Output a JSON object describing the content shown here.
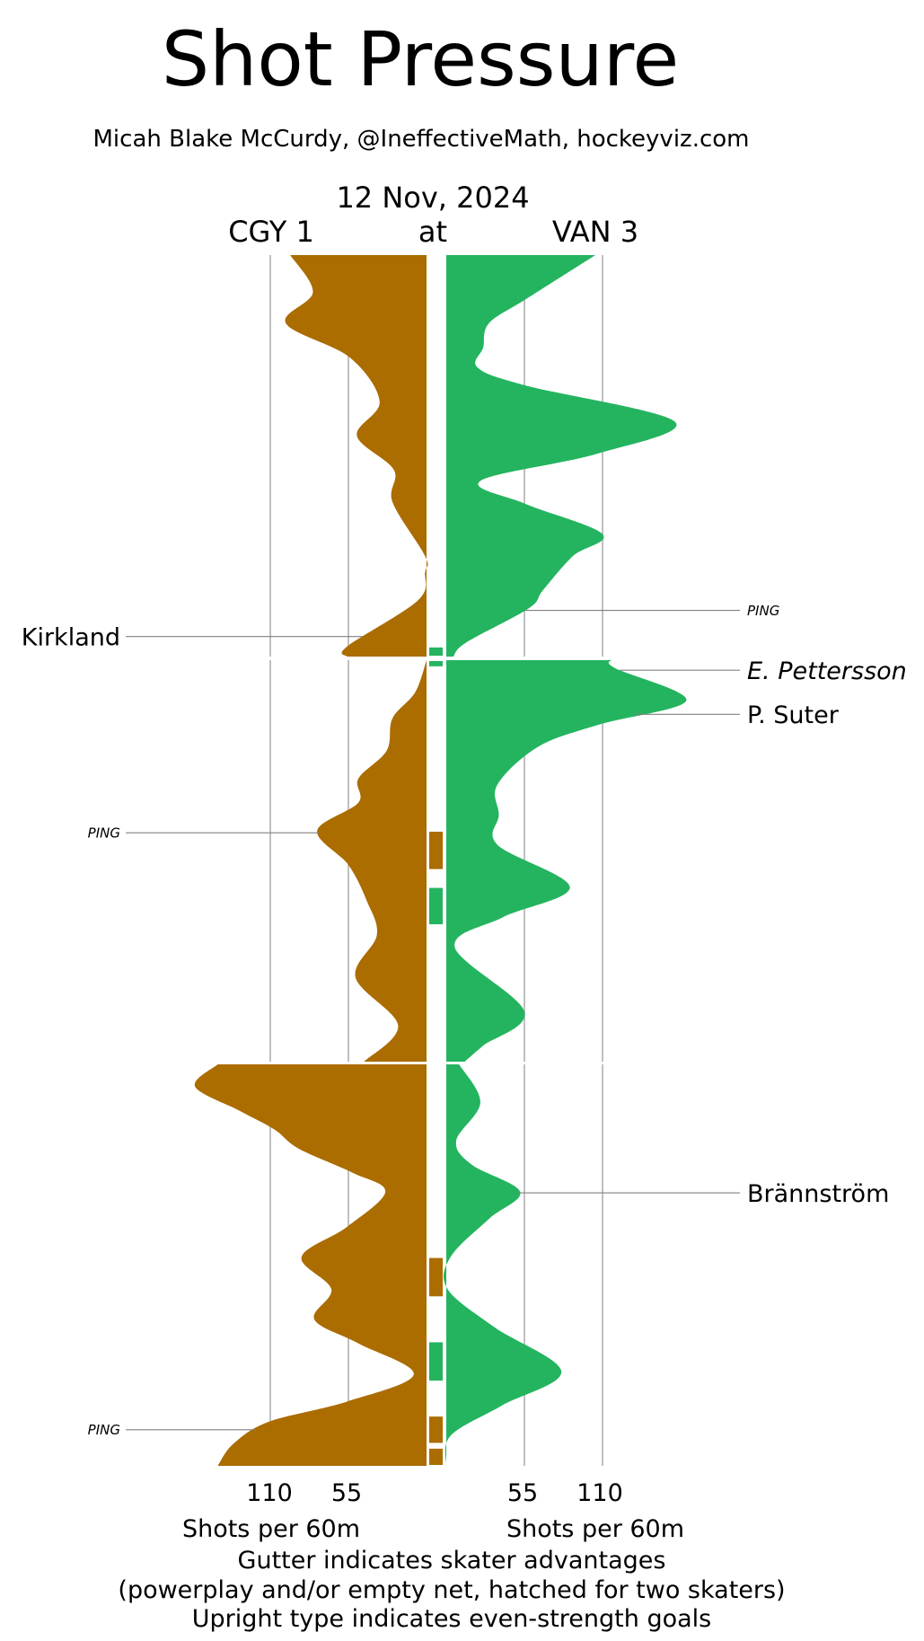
{
  "title": "Shot Pressure",
  "subtitle": "Micah Blake McCurdy, @IneffectiveMath, hockeyviz.com",
  "date": "12 Nov, 2024",
  "teams": {
    "away": "CGY 1",
    "separator": "at",
    "home": "VAN 3"
  },
  "colors": {
    "away": "#AB6C00",
    "home": "#24B45F"
  },
  "chart_data": {
    "type": "area",
    "title": "Shot Pressure",
    "xlabel_left": "Shots per 60m",
    "xlabel_right": "Shots per 60m",
    "ticks_left": [
      "110",
      "55"
    ],
    "tick_values_left": [
      110,
      55
    ],
    "ticks_right": [
      "55",
      "110"
    ],
    "tick_values_right": [
      55,
      110
    ],
    "period_length_min": 20,
    "series": [
      {
        "name": "CGY",
        "side": "left",
        "periods": [
          [
            [
              0,
              96
            ],
            [
              1.85,
              80
            ],
            [
              3.4,
              99
            ],
            [
              5.1,
              54
            ],
            [
              7.3,
              33
            ],
            [
              9.0,
              49
            ],
            [
              10.7,
              23
            ],
            [
              12.3,
              24
            ],
            [
              15.0,
              1
            ],
            [
              15.8,
              1
            ],
            [
              17.2,
              6
            ],
            [
              19.5,
              56
            ],
            [
              20,
              56
            ]
          ],
          [
            [
              0,
              0
            ],
            [
              1.6,
              8
            ],
            [
              2.9,
              24
            ],
            [
              4.5,
              28
            ],
            [
              5.9,
              48
            ],
            [
              7.1,
              48
            ],
            [
              8.5,
              77
            ],
            [
              10.2,
              55
            ],
            [
              12.0,
              42
            ],
            [
              13.7,
              35
            ],
            [
              15.8,
              50
            ],
            [
              18.2,
              20
            ],
            [
              20,
              44
            ]
          ],
          [
            [
              0,
              147
            ],
            [
              1.1,
              163
            ],
            [
              2.3,
              132
            ],
            [
              3.25,
              107
            ],
            [
              4.2,
              90
            ],
            [
              5.4,
              52
            ],
            [
              6.35,
              29
            ],
            [
              8.1,
              56
            ],
            [
              9.6,
              88
            ],
            [
              11.2,
              67
            ],
            [
              12.7,
              79
            ],
            [
              13.9,
              48
            ],
            [
              15.45,
              9
            ],
            [
              16.8,
              56
            ],
            [
              17.8,
              111
            ],
            [
              18.9,
              136
            ],
            [
              20,
              147
            ]
          ]
        ]
      },
      {
        "name": "VAN",
        "side": "right",
        "periods": [
          [
            [
              0,
              105
            ],
            [
              2.2,
              56
            ],
            [
              3.4,
              30
            ],
            [
              4.6,
              26
            ],
            [
              5.6,
              22
            ],
            [
              6.5,
              56
            ],
            [
              8.3,
              161
            ],
            [
              9.9,
              106
            ],
            [
              11.25,
              24
            ],
            [
              12.4,
              56
            ],
            [
              13.9,
              110
            ],
            [
              15.0,
              89
            ],
            [
              16.7,
              68
            ],
            [
              17.6,
              58
            ],
            [
              19.3,
              14
            ],
            [
              20,
              5
            ]
          ],
          [
            [
              0,
              116
            ],
            [
              0.4,
              119
            ],
            [
              2.0,
              169
            ],
            [
              3.2,
              108
            ],
            [
              4.3,
              65
            ],
            [
              6.2,
              36
            ],
            [
              7.7,
              37
            ],
            [
              9.2,
              36
            ],
            [
              11.3,
              87
            ],
            [
              12.8,
              40
            ],
            [
              14.3,
              6
            ],
            [
              17.5,
              55
            ],
            [
              19.2,
              26
            ],
            [
              20,
              13
            ]
          ],
          [
            [
              0,
              9
            ],
            [
              1.9,
              24
            ],
            [
              3.8,
              7
            ],
            [
              5.0,
              18
            ],
            [
              6.35,
              52
            ],
            [
              7.7,
              30
            ],
            [
              9.6,
              3
            ],
            [
              11.2,
              1
            ],
            [
              13.1,
              34
            ],
            [
              15.3,
              81
            ],
            [
              17.0,
              39
            ],
            [
              18.5,
              3
            ],
            [
              20,
              0
            ]
          ]
        ]
      }
    ],
    "gutter_bars": [
      {
        "team": "VAN",
        "period": 1,
        "start_min": 19.5,
        "end_min": 20
      },
      {
        "team": "VAN",
        "period": 2,
        "start_min": 0,
        "end_min": 0.35
      },
      {
        "team": "CGY",
        "period": 2,
        "start_min": 8.5,
        "end_min": 10.45
      },
      {
        "team": "VAN",
        "period": 2,
        "start_min": 11.3,
        "end_min": 13.2
      },
      {
        "team": "CGY",
        "period": 3,
        "start_min": 9.6,
        "end_min": 11.6
      },
      {
        "team": "VAN",
        "period": 3,
        "start_min": 13.8,
        "end_min": 15.8
      },
      {
        "team": "CGY",
        "period": 3,
        "start_min": 17.5,
        "end_min": 18.9
      },
      {
        "team": "CGY",
        "period": 3,
        "start_min": 19.1,
        "end_min": 20
      }
    ],
    "annotations": [
      {
        "label": "Kirkland",
        "team": "CGY",
        "period": 1,
        "minute": 19.0,
        "style": "upright",
        "kind": "goal"
      },
      {
        "label": "PING",
        "team": "VAN",
        "period": 1,
        "minute": 17.7,
        "style": "italic",
        "kind": "post"
      },
      {
        "label": "E. Pettersson",
        "team": "VAN",
        "period": 2,
        "minute": 0.5,
        "style": "italic",
        "kind": "goal"
      },
      {
        "label": "P. Suter",
        "team": "VAN",
        "period": 2,
        "minute": 2.7,
        "style": "upright",
        "kind": "goal"
      },
      {
        "label": "PING",
        "team": "CGY",
        "period": 2,
        "minute": 8.6,
        "style": "italic",
        "kind": "post"
      },
      {
        "label": "Brännström",
        "team": "VAN",
        "period": 3,
        "minute": 6.4,
        "style": "upright",
        "kind": "goal"
      },
      {
        "label": "PING",
        "team": "CGY",
        "period": 3,
        "minute": 18.2,
        "style": "italic",
        "kind": "post"
      }
    ]
  },
  "footer": {
    "line1": "Gutter indicates skater advantages",
    "line2": "(powerplay and/or empty net, hatched for two skaters)",
    "line3": "Upright type indicates even-strength goals"
  }
}
